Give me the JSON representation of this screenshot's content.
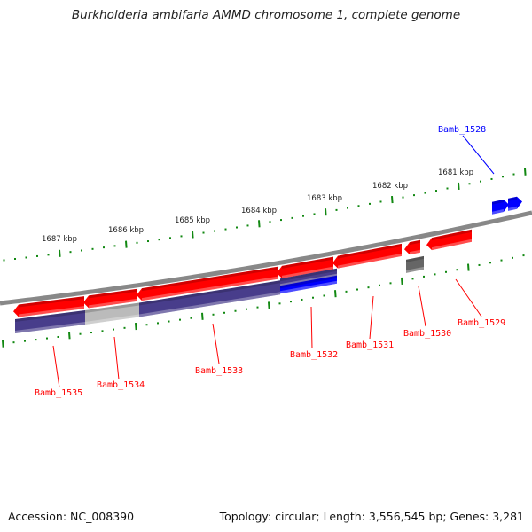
{
  "title": "Burkholderia ambifaria AMMD chromosome 1, complete genome",
  "footer": {
    "accession": "Accession: NC_008390",
    "topology": "Topology: circular; Length: 3,556,545 bp; Genes: 3,281"
  },
  "scale_labels": [
    "1687 kbp",
    "1686 kbp",
    "1685 kbp",
    "1684 kbp",
    "1683 kbp",
    "1682 kbp",
    "1681 kbp"
  ],
  "genes": {
    "reverse": [
      "Bamb_1535",
      "Bamb_1534",
      "Bamb_1533",
      "Bamb_1532",
      "Bamb_1531",
      "Bamb_1530",
      "Bamb_1529"
    ],
    "forward": [
      "Bamb_1528"
    ]
  },
  "colors": {
    "reverse_gene": "#ff0000",
    "forward_gene": "#0000ff",
    "protein_bar": "#483d8b",
    "pseudo_bar": "#bbbbbb",
    "rna_bar": "#666666",
    "ticks": "#118811",
    "backbone": "#888888"
  }
}
